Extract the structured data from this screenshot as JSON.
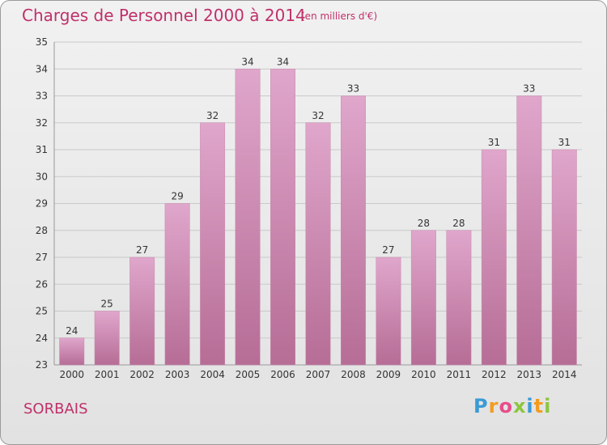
{
  "header": {
    "title": "Charges de Personnel 2000 à 2014",
    "subtitle": "(en milliers d'€)"
  },
  "footer": {
    "place": "SORBAIS",
    "brand": "Proxiti",
    "brand_letters": [
      {
        "ch": "P",
        "color": "#3a9bd5"
      },
      {
        "ch": "r",
        "color": "#f39c1e"
      },
      {
        "ch": "o",
        "color": "#e84c8b"
      },
      {
        "ch": "x",
        "color": "#8cc63f"
      },
      {
        "ch": "i",
        "color": "#3a9bd5"
      },
      {
        "ch": "t",
        "color": "#f39c1e"
      },
      {
        "ch": "i",
        "color": "#8cc63f"
      }
    ]
  },
  "colors": {
    "title": "#c0306a",
    "bar_top": "#e0a6cb",
    "bar_bottom": "#b66d96",
    "grid": "#c9c9c9",
    "axis_text": "#333333"
  },
  "chart_data": {
    "type": "bar",
    "categories": [
      "2000",
      "2001",
      "2002",
      "2003",
      "2004",
      "2005",
      "2006",
      "2007",
      "2008",
      "2009",
      "2010",
      "2011",
      "2012",
      "2013",
      "2014"
    ],
    "values": [
      24,
      25,
      27,
      29,
      32,
      34,
      34,
      32,
      33,
      27,
      28,
      28,
      31,
      33,
      31
    ],
    "ylim": [
      23,
      35
    ],
    "yticks": [
      23,
      24,
      25,
      26,
      27,
      28,
      29,
      30,
      31,
      32,
      33,
      34,
      35
    ],
    "grid": true,
    "data_labels": true
  }
}
